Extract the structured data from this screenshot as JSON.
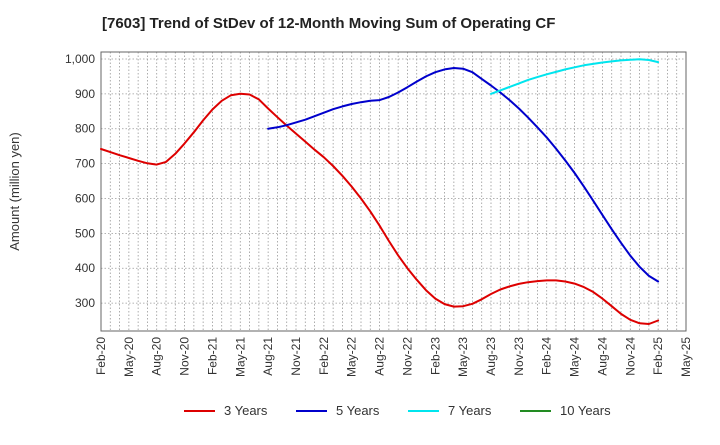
{
  "chart_data": {
    "type": "line",
    "title": "[7603]  Trend of StDev of 12-Month Moving Sum of Operating CF",
    "xlabel": "",
    "ylabel": "Amount (million yen)",
    "ylim": [
      220,
      1020
    ],
    "yticks": [
      300,
      400,
      500,
      600,
      700,
      800,
      900,
      1000
    ],
    "ytick_labels": [
      "300",
      "400",
      "500",
      "600",
      "700",
      "800",
      "900",
      "1,000"
    ],
    "x_start": "Feb-20",
    "x_categories": [
      "Feb-20",
      "May-20",
      "Aug-20",
      "Nov-20",
      "Feb-21",
      "May-21",
      "Aug-21",
      "Nov-21",
      "Feb-22",
      "May-22",
      "Aug-22",
      "Nov-22",
      "Feb-23",
      "May-23",
      "Aug-23",
      "Nov-23",
      "Feb-24",
      "May-24",
      "Aug-24",
      "Nov-24",
      "Feb-25",
      "May-25"
    ],
    "grid": true,
    "legend_position": "bottom",
    "series": [
      {
        "name": "3 Years",
        "color": "#dd0000",
        "x": [
          "Feb-20",
          "Mar-20",
          "Apr-20",
          "May-20",
          "Jun-20",
          "Jul-20",
          "Aug-20",
          "Sep-20",
          "Oct-20",
          "Nov-20",
          "Dec-20",
          "Jan-21",
          "Feb-21",
          "Mar-21",
          "Apr-21",
          "May-21",
          "Jun-21",
          "Jul-21",
          "Aug-21",
          "Sep-21",
          "Oct-21",
          "Nov-21",
          "Dec-21",
          "Jan-22",
          "Feb-22",
          "Mar-22",
          "Apr-22",
          "May-22",
          "Jun-22",
          "Jul-22",
          "Aug-22",
          "Sep-22",
          "Oct-22",
          "Nov-22",
          "Dec-22",
          "Jan-23",
          "Feb-23",
          "Mar-23",
          "Apr-23",
          "May-23",
          "Jun-23",
          "Jul-23",
          "Aug-23",
          "Sep-23",
          "Oct-23",
          "Nov-23",
          "Dec-23",
          "Jan-24",
          "Feb-24",
          "Mar-24",
          "Apr-24",
          "May-24",
          "Jun-24",
          "Jul-24",
          "Aug-24",
          "Sep-24",
          "Oct-24",
          "Nov-24",
          "Dec-24",
          "Jan-25",
          "Feb-25"
        ],
        "values": [
          742,
          733,
          724,
          716,
          708,
          701,
          697,
          705,
          728,
          758,
          790,
          824,
          855,
          880,
          896,
          900,
          898,
          884,
          858,
          833,
          809,
          786,
          763,
          740,
          718,
          693,
          665,
          634,
          600,
          563,
          522,
          478,
          437,
          400,
          367,
          337,
          313,
          297,
          290,
          291,
          298,
          311,
          326,
          339,
          348,
          355,
          360,
          363,
          365,
          365,
          362,
          356,
          346,
          332,
          313,
          291,
          269,
          252,
          242,
          240,
          250
        ]
      },
      {
        "name": "5 Years",
        "color": "#0000cc",
        "x": [
          "Aug-21",
          "Sep-21",
          "Oct-21",
          "Nov-21",
          "Dec-21",
          "Jan-22",
          "Feb-22",
          "Mar-22",
          "Apr-22",
          "May-22",
          "Jun-22",
          "Jul-22",
          "Aug-22",
          "Sep-22",
          "Oct-22",
          "Nov-22",
          "Dec-22",
          "Jan-23",
          "Feb-23",
          "Mar-23",
          "Apr-23",
          "May-23",
          "Jun-23",
          "Jul-23",
          "Aug-23",
          "Sep-23",
          "Oct-23",
          "Nov-23",
          "Dec-23",
          "Jan-24",
          "Feb-24",
          "Mar-24",
          "Apr-24",
          "May-24",
          "Jun-24",
          "Jul-24",
          "Aug-24",
          "Sep-24",
          "Oct-24",
          "Nov-24",
          "Dec-24",
          "Jan-25",
          "Feb-25"
        ],
        "values": [
          800,
          804,
          810,
          818,
          826,
          836,
          846,
          856,
          864,
          871,
          876,
          880,
          882,
          891,
          904,
          919,
          935,
          950,
          962,
          970,
          974,
          972,
          962,
          943,
          924,
          904,
          882,
          858,
          832,
          804,
          775,
          743,
          709,
          673,
          634,
          594,
          553,
          512,
          473,
          436,
          404,
          378,
          362
        ]
      },
      {
        "name": "7 Years",
        "color": "#00e5ee",
        "x": [
          "Aug-23",
          "Sep-23",
          "Oct-23",
          "Nov-23",
          "Dec-23",
          "Jan-24",
          "Feb-24",
          "Mar-24",
          "Apr-24",
          "May-24",
          "Jun-24",
          "Jul-24",
          "Aug-24",
          "Sep-24",
          "Oct-24",
          "Nov-24",
          "Dec-24",
          "Jan-25",
          "Feb-25"
        ],
        "values": [
          900,
          910,
          920,
          930,
          940,
          948,
          956,
          963,
          970,
          976,
          982,
          986,
          990,
          993,
          996,
          998,
          999,
          997,
          991
        ]
      },
      {
        "name": "10 Years",
        "color": "#228b22",
        "x": [],
        "values": []
      }
    ]
  }
}
